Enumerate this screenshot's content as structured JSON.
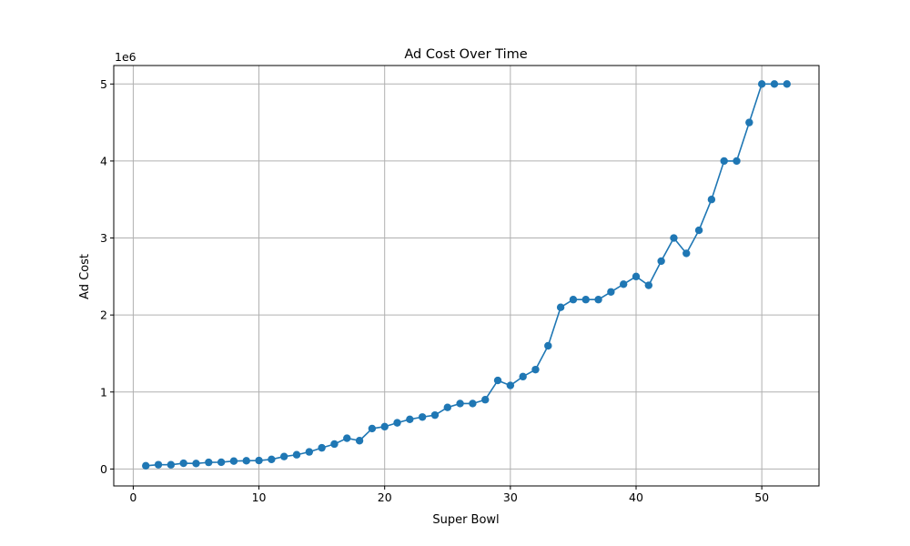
{
  "chart_data": {
    "type": "line",
    "title": "Ad Cost Over Time",
    "xlabel": "Super Bowl",
    "ylabel": "Ad Cost",
    "y_offset_label": "1e6",
    "y_scale": 1000000,
    "xlim": [
      -1.55,
      54.55
    ],
    "ylim": [
      -220000,
      5240000
    ],
    "x_ticks": [
      0,
      10,
      20,
      30,
      40,
      50
    ],
    "y_ticks": [
      0,
      1000000,
      2000000,
      3000000,
      4000000,
      5000000
    ],
    "grid": true,
    "marker": "circle",
    "series": [
      {
        "color": "#1f77b4",
        "x": [
          1,
          2,
          3,
          4,
          5,
          6,
          7,
          8,
          9,
          10,
          11,
          12,
          13,
          14,
          15,
          16,
          17,
          18,
          19,
          20,
          21,
          22,
          23,
          24,
          25,
          26,
          27,
          28,
          29,
          30,
          31,
          32,
          33,
          34,
          35,
          36,
          37,
          38,
          39,
          40,
          41,
          42,
          43,
          44,
          45,
          46,
          47,
          48,
          49,
          50,
          51,
          52
        ],
        "y": [
          42000,
          56000,
          55000,
          75000,
          72000,
          86000,
          88000,
          103000,
          107000,
          110000,
          125000,
          162000,
          185000,
          222000,
          275000,
          324000,
          400000,
          368000,
          525000,
          550000,
          600000,
          645000,
          675000,
          700000,
          800000,
          850000,
          850000,
          900000,
          1150000,
          1085000,
          1200000,
          1291000,
          1600000,
          2100000,
          2200000,
          2200000,
          2200000,
          2300000,
          2400000,
          2500000,
          2385000,
          2700000,
          3000000,
          2800000,
          3100000,
          3500000,
          4000000,
          4000000,
          4500000,
          5000000,
          5000000,
          5000000
        ]
      }
    ]
  }
}
